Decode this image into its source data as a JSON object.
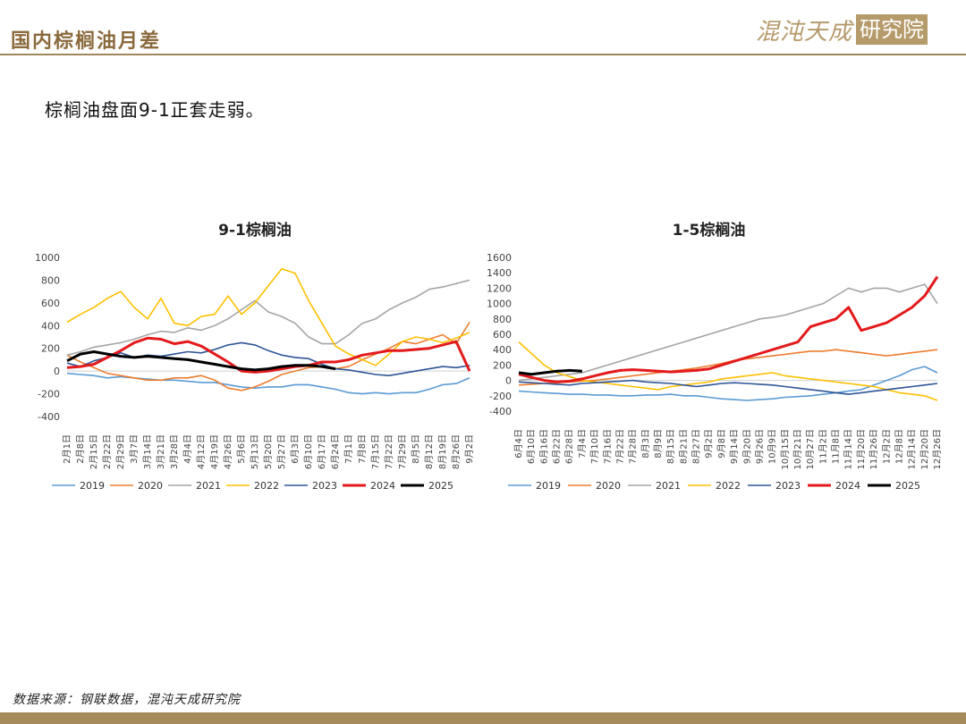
{
  "header": {
    "title": "国内棕榈油月差",
    "logo_text": "混沌天成",
    "logo_box": "研究院"
  },
  "subtitle": "棕榈油盘面9-1正套走弱。",
  "source": "数据来源：钢联数据，混沌天成研究院",
  "colors": {
    "2019": "#5b9bd5",
    "2020": "#ed7d31",
    "2021": "#a5a5a5",
    "2022": "#ffc000",
    "2023": "#2f5597",
    "2024": "#e31a1c",
    "2025": "#000000"
  },
  "chart_data": [
    {
      "type": "line",
      "title": "9-1棕榈油",
      "ylim": [
        -400,
        1000
      ],
      "yticks": [
        -400,
        -200,
        0,
        200,
        400,
        600,
        800,
        1000
      ],
      "x_tick_labels": [
        "2月1日",
        "2月8日",
        "2月15日",
        "2月22日",
        "2月29日",
        "3月7日",
        "3月14日",
        "3月21日",
        "3月28日",
        "4月4日",
        "4月12日",
        "4月19日",
        "4月26日",
        "5月6日",
        "5月13日",
        "5月20日",
        "5月27日",
        "6月3日",
        "6月10日",
        "6月17日",
        "6月24日",
        "7月1日",
        "7月8日",
        "7月15日",
        "7月22日",
        "7月29日",
        "8月5日",
        "8月12日",
        "8月19日",
        "8月26日",
        "9月2日"
      ],
      "legend_position": "bottom",
      "series": [
        {
          "name": "2019",
          "values": [
            -20,
            -30,
            -40,
            -60,
            -50,
            -60,
            -70,
            -80,
            -80,
            -90,
            -100,
            -100,
            -120,
            -140,
            -150,
            -140,
            -140,
            -120,
            -120,
            -140,
            -160,
            -190,
            -200,
            -190,
            -200,
            -190,
            -190,
            -160,
            -120,
            -110,
            -60
          ]
        },
        {
          "name": "2020",
          "values": [
            140,
            80,
            30,
            -20,
            -40,
            -60,
            -80,
            -80,
            -60,
            -60,
            -40,
            -80,
            -150,
            -170,
            -140,
            -90,
            -30,
            0,
            30,
            40,
            20,
            40,
            100,
            150,
            200,
            260,
            240,
            280,
            320,
            240,
            430
          ]
        },
        {
          "name": "2021",
          "values": [
            140,
            170,
            210,
            230,
            250,
            280,
            320,
            350,
            340,
            380,
            360,
            400,
            460,
            540,
            620,
            520,
            480,
            420,
            300,
            240,
            240,
            320,
            420,
            460,
            540,
            600,
            650,
            720,
            740,
            770,
            800
          ]
        },
        {
          "name": "2022",
          "values": [
            430,
            500,
            560,
            640,
            700,
            560,
            460,
            640,
            420,
            400,
            480,
            500,
            660,
            500,
            600,
            750,
            900,
            860,
            620,
            420,
            220,
            150,
            100,
            50,
            150,
            260,
            300,
            280,
            250,
            290,
            340
          ]
        },
        {
          "name": "2023",
          "values": [
            70,
            40,
            90,
            120,
            160,
            120,
            140,
            130,
            150,
            170,
            160,
            190,
            230,
            250,
            230,
            180,
            140,
            120,
            110,
            60,
            20,
            10,
            -10,
            -30,
            -40,
            -20,
            0,
            20,
            40,
            30,
            50
          ]
        },
        {
          "name": "2024",
          "values": [
            30,
            40,
            60,
            120,
            180,
            250,
            290,
            280,
            240,
            260,
            220,
            150,
            80,
            0,
            -10,
            0,
            20,
            40,
            50,
            80,
            80,
            100,
            140,
            160,
            180,
            180,
            190,
            200,
            230,
            260,
            0
          ]
        },
        {
          "name": "2025",
          "values": [
            90,
            150,
            170,
            150,
            130,
            120,
            130,
            120,
            110,
            100,
            80,
            60,
            40,
            20,
            10,
            20,
            40,
            50,
            50,
            40,
            20
          ]
        }
      ]
    },
    {
      "type": "line",
      "title": "1-5棕榈油",
      "ylim": [
        -400,
        1600
      ],
      "yticks": [
        -400,
        -200,
        0,
        200,
        400,
        600,
        800,
        1000,
        1200,
        1400,
        1600
      ],
      "x_tick_labels": [
        "6月4日",
        "6月10日",
        "6月16日",
        "6月22日",
        "6月28日",
        "7月4日",
        "7月10日",
        "7月16日",
        "7月22日",
        "7月28日",
        "8月3日",
        "8月9日",
        "8月15日",
        "8月21日",
        "8月27日",
        "9月2日",
        "9月8日",
        "9月14日",
        "9月20日",
        "9月26日",
        "10月9日",
        "10月15日",
        "10月21日",
        "10月27日",
        "11月2日",
        "11月8日",
        "11月14日",
        "11月20日",
        "11月26日",
        "12月2日",
        "12月8日",
        "12月14日",
        "12月20日",
        "12月26日"
      ],
      "legend_position": "bottom",
      "series": [
        {
          "name": "2019",
          "values": [
            -140,
            -150,
            -160,
            -170,
            -180,
            -180,
            -190,
            -190,
            -200,
            -200,
            -190,
            -190,
            -180,
            -200,
            -200,
            -220,
            -240,
            -250,
            -260,
            -250,
            -240,
            -220,
            -210,
            -200,
            -180,
            -160,
            -140,
            -120,
            -60,
            0,
            60,
            140,
            180,
            100
          ]
        },
        {
          "name": "2020",
          "values": [
            -60,
            -50,
            -40,
            -30,
            -20,
            -10,
            0,
            20,
            40,
            60,
            80,
            100,
            120,
            140,
            160,
            190,
            220,
            260,
            280,
            300,
            320,
            340,
            360,
            380,
            380,
            400,
            380,
            360,
            340,
            320,
            340,
            360,
            380,
            400
          ]
        },
        {
          "name": "2021",
          "values": [
            0,
            20,
            40,
            60,
            80,
            100,
            150,
            200,
            250,
            300,
            350,
            400,
            450,
            500,
            550,
            600,
            650,
            700,
            750,
            800,
            820,
            850,
            900,
            950,
            1000,
            1100,
            1200,
            1150,
            1200,
            1200,
            1150,
            1200,
            1250,
            1000
          ]
        },
        {
          "name": "2022",
          "values": [
            500,
            350,
            200,
            100,
            50,
            0,
            -20,
            -40,
            -60,
            -80,
            -100,
            -120,
            -80,
            -60,
            -40,
            -20,
            20,
            40,
            60,
            80,
            100,
            60,
            40,
            20,
            0,
            -20,
            -40,
            -60,
            -80,
            -120,
            -160,
            -180,
            -200,
            -260
          ]
        },
        {
          "name": "2023",
          "values": [
            -20,
            -30,
            -40,
            -50,
            -60,
            -40,
            -30,
            -20,
            -10,
            0,
            -20,
            -30,
            -40,
            -60,
            -80,
            -60,
            -40,
            -30,
            -40,
            -50,
            -60,
            -80,
            -100,
            -120,
            -140,
            -160,
            -180,
            -160,
            -140,
            -120,
            -100,
            -80,
            -60,
            -40
          ]
        },
        {
          "name": "2024",
          "values": [
            80,
            40,
            0,
            -20,
            -10,
            20,
            60,
            100,
            130,
            140,
            130,
            120,
            110,
            120,
            130,
            150,
            200,
            250,
            300,
            350,
            400,
            450,
            500,
            700,
            750,
            800,
            950,
            650,
            700,
            750,
            850,
            950,
            1100,
            1350
          ]
        },
        {
          "name": "2025",
          "values": [
            100,
            80,
            100,
            120,
            130,
            120
          ]
        }
      ]
    }
  ]
}
